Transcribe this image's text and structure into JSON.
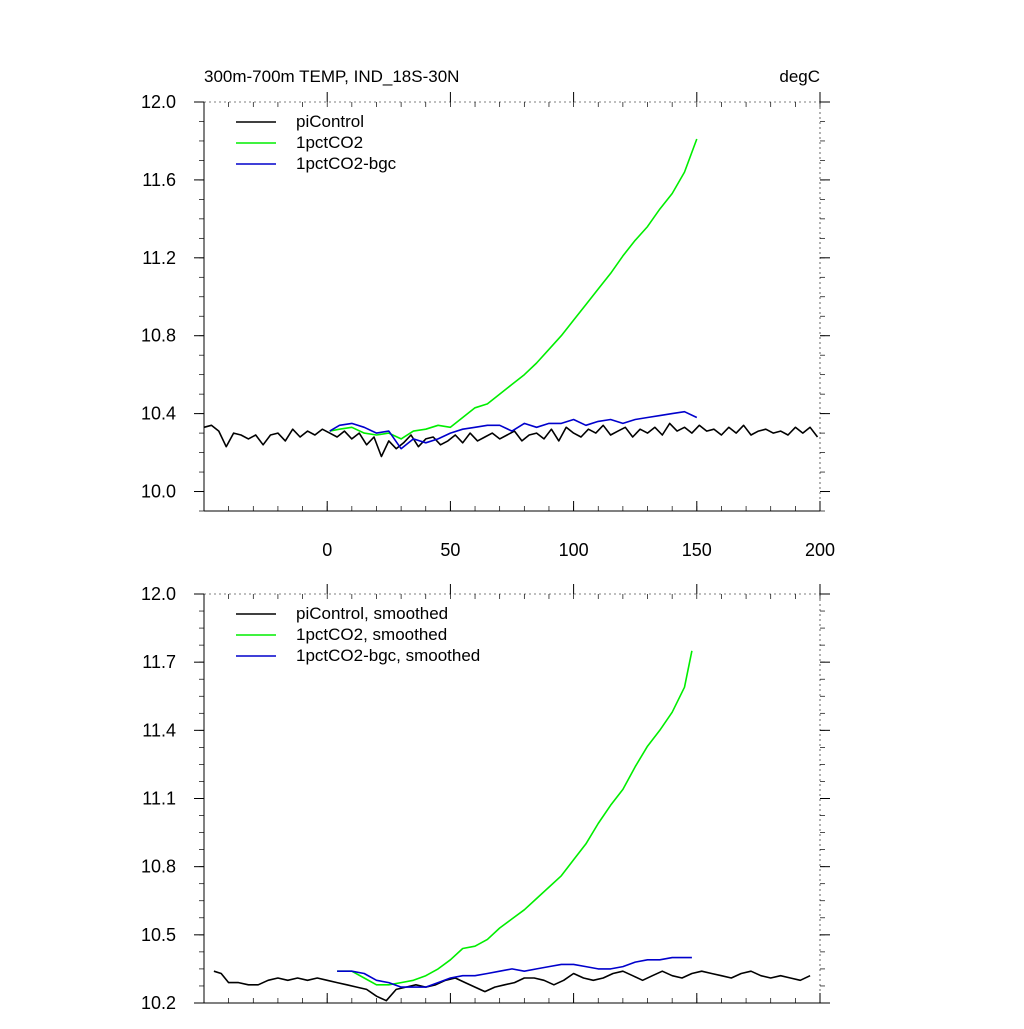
{
  "chart_data": [
    {
      "type": "line",
      "title_left": "300m-700m TEMP, IND_18S-30N",
      "title_right": "degC",
      "xlim": [
        -50,
        200
      ],
      "ylim": [
        9.9,
        12.0
      ],
      "xticks": [
        0,
        50,
        100,
        150,
        200
      ],
      "xtick_labels": [
        "0",
        "50",
        "100",
        "150",
        "200"
      ],
      "yticks": [
        10.0,
        10.4,
        10.8,
        11.2,
        11.6,
        12.0
      ],
      "ytick_labels": [
        "10.0",
        "10.4",
        "10.8",
        "11.2",
        "11.6",
        "12.0"
      ],
      "grid": false,
      "legend_position": "top-left",
      "series": [
        {
          "name": "piControl",
          "color": "#000000",
          "x": [
            -50,
            -47,
            -44,
            -41,
            -38,
            -35,
            -32,
            -29,
            -26,
            -23,
            -20,
            -17,
            -14,
            -11,
            -8,
            -5,
            -2,
            1,
            4,
            7,
            10,
            13,
            16,
            19,
            22,
            25,
            28,
            31,
            34,
            37,
            40,
            43,
            46,
            49,
            52,
            55,
            58,
            61,
            64,
            67,
            70,
            73,
            76,
            79,
            82,
            85,
            88,
            91,
            94,
            97,
            100,
            103,
            106,
            109,
            112,
            115,
            118,
            121,
            124,
            127,
            130,
            133,
            136,
            139,
            142,
            145,
            148,
            151,
            154,
            157,
            160,
            163,
            166,
            169,
            172,
            175,
            178,
            181,
            184,
            187,
            190,
            193,
            196,
            199
          ],
          "y": [
            10.33,
            10.34,
            10.31,
            10.23,
            10.3,
            10.29,
            10.27,
            10.29,
            10.24,
            10.29,
            10.3,
            10.26,
            10.32,
            10.28,
            10.31,
            10.29,
            10.32,
            10.3,
            10.28,
            10.31,
            10.27,
            10.3,
            10.24,
            10.28,
            10.18,
            10.26,
            10.22,
            10.25,
            10.29,
            10.23,
            10.27,
            10.28,
            10.24,
            10.26,
            10.29,
            10.25,
            10.3,
            10.26,
            10.28,
            10.3,
            10.27,
            10.29,
            10.31,
            10.26,
            10.29,
            10.3,
            10.27,
            10.32,
            10.26,
            10.33,
            10.3,
            10.28,
            10.32,
            10.3,
            10.34,
            10.29,
            10.31,
            10.33,
            10.28,
            10.32,
            10.3,
            10.33,
            10.29,
            10.35,
            10.31,
            10.33,
            10.3,
            10.34,
            10.31,
            10.32,
            10.29,
            10.33,
            10.3,
            10.34,
            10.29,
            10.31,
            10.32,
            10.3,
            10.31,
            10.29,
            10.33,
            10.3,
            10.33,
            10.28
          ]
        },
        {
          "name": "1pctCO2",
          "color": "#00ee00",
          "x": [
            1,
            5,
            10,
            15,
            20,
            25,
            30,
            35,
            40,
            45,
            50,
            55,
            60,
            65,
            70,
            75,
            80,
            85,
            90,
            95,
            100,
            105,
            110,
            115,
            120,
            125,
            130,
            135,
            140,
            145,
            150
          ],
          "y": [
            10.31,
            10.32,
            10.33,
            10.3,
            10.29,
            10.3,
            10.27,
            10.31,
            10.32,
            10.34,
            10.33,
            10.38,
            10.43,
            10.45,
            10.5,
            10.55,
            10.6,
            10.66,
            10.73,
            10.8,
            10.88,
            10.96,
            11.04,
            11.12,
            11.21,
            11.29,
            11.36,
            11.45,
            11.53,
            11.64,
            11.81
          ]
        },
        {
          "name": "1pctCO2-bgc",
          "color": "#0000cc",
          "x": [
            1,
            5,
            10,
            15,
            20,
            25,
            30,
            35,
            40,
            45,
            50,
            55,
            60,
            65,
            70,
            75,
            80,
            85,
            90,
            95,
            100,
            105,
            110,
            115,
            120,
            125,
            130,
            135,
            140,
            145,
            150
          ],
          "y": [
            10.31,
            10.34,
            10.35,
            10.33,
            10.3,
            10.31,
            10.22,
            10.27,
            10.25,
            10.27,
            10.3,
            10.32,
            10.33,
            10.34,
            10.34,
            10.31,
            10.35,
            10.33,
            10.35,
            10.35,
            10.37,
            10.34,
            10.36,
            10.37,
            10.35,
            10.37,
            10.38,
            10.39,
            10.4,
            10.41,
            10.38
          ]
        }
      ]
    },
    {
      "type": "line",
      "xlim": [
        -50,
        200
      ],
      "ylim": [
        10.2,
        12.0
      ],
      "xticks": [
        0,
        50,
        100,
        150,
        200
      ],
      "yticks": [
        10.2,
        10.5,
        10.8,
        11.1,
        11.4,
        11.7,
        12.0
      ],
      "ytick_labels": [
        "10.2",
        "10.5",
        "10.8",
        "11.1",
        "11.4",
        "11.7",
        "12.0"
      ],
      "grid": false,
      "legend_position": "top-left",
      "series": [
        {
          "name": "piControl, smoothed",
          "color": "#000000",
          "x": [
            -46,
            -43,
            -40,
            -36,
            -32,
            -28,
            -24,
            -20,
            -16,
            -12,
            -8,
            -4,
            0,
            4,
            8,
            12,
            16,
            20,
            24,
            28,
            32,
            36,
            40,
            44,
            48,
            52,
            56,
            60,
            64,
            68,
            72,
            76,
            80,
            84,
            88,
            92,
            96,
            100,
            104,
            108,
            112,
            116,
            120,
            124,
            128,
            132,
            136,
            140,
            144,
            148,
            152,
            156,
            160,
            164,
            168,
            172,
            176,
            180,
            184,
            188,
            192,
            196
          ],
          "y": [
            10.34,
            10.33,
            10.29,
            10.29,
            10.28,
            10.28,
            10.3,
            10.31,
            10.3,
            10.31,
            10.3,
            10.31,
            10.3,
            10.29,
            10.28,
            10.27,
            10.26,
            10.23,
            10.21,
            10.26,
            10.27,
            10.28,
            10.27,
            10.28,
            10.3,
            10.31,
            10.29,
            10.27,
            10.25,
            10.27,
            10.28,
            10.29,
            10.31,
            10.31,
            10.3,
            10.28,
            10.3,
            10.33,
            10.31,
            10.3,
            10.31,
            10.33,
            10.34,
            10.32,
            10.3,
            10.32,
            10.34,
            10.32,
            10.31,
            10.33,
            10.34,
            10.33,
            10.32,
            10.31,
            10.33,
            10.34,
            10.32,
            10.31,
            10.32,
            10.31,
            10.3,
            10.32
          ]
        },
        {
          "name": "1pctCO2, smoothed",
          "color": "#00ee00",
          "x": [
            4,
            10,
            15,
            20,
            25,
            30,
            35,
            40,
            45,
            50,
            55,
            60,
            65,
            70,
            75,
            80,
            85,
            90,
            95,
            100,
            105,
            110,
            115,
            120,
            125,
            130,
            135,
            140,
            145,
            148
          ],
          "y": [
            10.34,
            10.34,
            10.31,
            10.28,
            10.28,
            10.29,
            10.3,
            10.32,
            10.35,
            10.39,
            10.44,
            10.45,
            10.48,
            10.53,
            10.57,
            10.61,
            10.66,
            10.71,
            10.76,
            10.83,
            10.9,
            10.99,
            11.07,
            11.14,
            11.24,
            11.33,
            11.4,
            11.48,
            11.59,
            11.75
          ]
        },
        {
          "name": "1pctCO2-bgc, smoothed",
          "color": "#0000cc",
          "x": [
            4,
            10,
            15,
            20,
            25,
            30,
            35,
            40,
            45,
            50,
            55,
            60,
            65,
            70,
            75,
            80,
            85,
            90,
            95,
            100,
            105,
            110,
            115,
            120,
            125,
            130,
            135,
            140,
            145,
            148
          ],
          "y": [
            10.34,
            10.34,
            10.33,
            10.3,
            10.29,
            10.27,
            10.27,
            10.27,
            10.29,
            10.31,
            10.32,
            10.32,
            10.33,
            10.34,
            10.35,
            10.34,
            10.35,
            10.36,
            10.37,
            10.37,
            10.36,
            10.35,
            10.35,
            10.36,
            10.38,
            10.39,
            10.39,
            10.4,
            10.4,
            10.4
          ]
        }
      ]
    }
  ]
}
